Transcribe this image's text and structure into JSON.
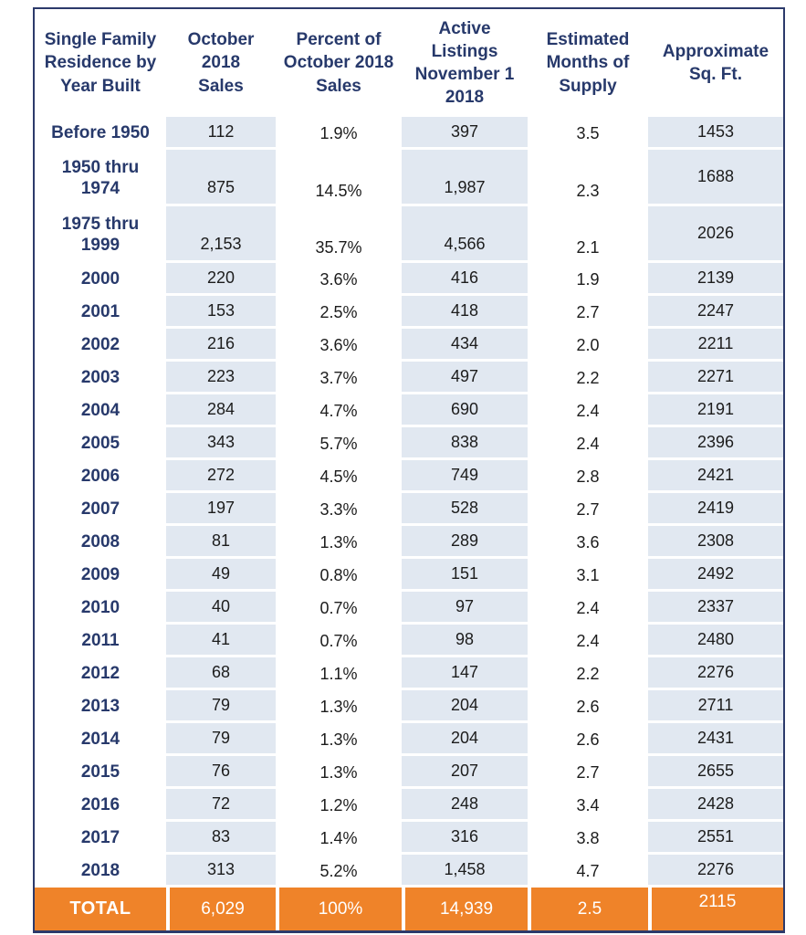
{
  "colors": {
    "header_text_navy": "#27396B",
    "border_navy": "#2C3A6B",
    "shaded_cell_blue": "#E1E8F1",
    "total_row_orange": "#EF8329",
    "total_row_text": "#FFFFFF",
    "value_text": "#1C1C1C"
  },
  "chart_data": {
    "type": "table",
    "columns": [
      "Single Family\nResidence by\nYear Built",
      "October\n2018\nSales",
      "Percent of\nOctober 2018\nSales",
      "Active\nListings\nNovember 1\n2018",
      "Estimated\nMonths of\nSupply",
      "Approximate\nSq. Ft."
    ],
    "rows": [
      {
        "year_built": "Before 1950",
        "sales": "112",
        "percent": "1.9%",
        "listings": "397",
        "supply": "3.5",
        "sqft": "1453",
        "tall": false
      },
      {
        "year_built": "1950 thru\n1974",
        "sales": "875",
        "percent": "14.5%",
        "listings": "1,987",
        "supply": "2.3",
        "sqft": "1688",
        "tall": true
      },
      {
        "year_built": "1975 thru\n1999",
        "sales": "2,153",
        "percent": "35.7%",
        "listings": "4,566",
        "supply": "2.1",
        "sqft": "2026",
        "tall": true
      },
      {
        "year_built": "2000",
        "sales": "220",
        "percent": "3.6%",
        "listings": "416",
        "supply": "1.9",
        "sqft": "2139",
        "tall": false
      },
      {
        "year_built": "2001",
        "sales": "153",
        "percent": "2.5%",
        "listings": "418",
        "supply": "2.7",
        "sqft": "2247",
        "tall": false
      },
      {
        "year_built": "2002",
        "sales": "216",
        "percent": "3.6%",
        "listings": "434",
        "supply": "2.0",
        "sqft": "2211",
        "tall": false
      },
      {
        "year_built": "2003",
        "sales": "223",
        "percent": "3.7%",
        "listings": "497",
        "supply": "2.2",
        "sqft": "2271",
        "tall": false
      },
      {
        "year_built": "2004",
        "sales": "284",
        "percent": "4.7%",
        "listings": "690",
        "supply": "2.4",
        "sqft": "2191",
        "tall": false
      },
      {
        "year_built": "2005",
        "sales": "343",
        "percent": "5.7%",
        "listings": "838",
        "supply": "2.4",
        "sqft": "2396",
        "tall": false
      },
      {
        "year_built": "2006",
        "sales": "272",
        "percent": "4.5%",
        "listings": "749",
        "supply": "2.8",
        "sqft": "2421",
        "tall": false
      },
      {
        "year_built": "2007",
        "sales": "197",
        "percent": "3.3%",
        "listings": "528",
        "supply": "2.7",
        "sqft": "2419",
        "tall": false
      },
      {
        "year_built": "2008",
        "sales": "81",
        "percent": "1.3%",
        "listings": "289",
        "supply": "3.6",
        "sqft": "2308",
        "tall": false
      },
      {
        "year_built": "2009",
        "sales": "49",
        "percent": "0.8%",
        "listings": "151",
        "supply": "3.1",
        "sqft": "2492",
        "tall": false
      },
      {
        "year_built": "2010",
        "sales": "40",
        "percent": "0.7%",
        "listings": "97",
        "supply": "2.4",
        "sqft": "2337",
        "tall": false
      },
      {
        "year_built": "2011",
        "sales": "41",
        "percent": "0.7%",
        "listings": "98",
        "supply": "2.4",
        "sqft": "2480",
        "tall": false
      },
      {
        "year_built": "2012",
        "sales": "68",
        "percent": "1.1%",
        "listings": "147",
        "supply": "2.2",
        "sqft": "2276",
        "tall": false
      },
      {
        "year_built": "2013",
        "sales": "79",
        "percent": "1.3%",
        "listings": "204",
        "supply": "2.6",
        "sqft": "2711",
        "tall": false
      },
      {
        "year_built": "2014",
        "sales": "79",
        "percent": "1.3%",
        "listings": "204",
        "supply": "2.6",
        "sqft": "2431",
        "tall": false
      },
      {
        "year_built": "2015",
        "sales": "76",
        "percent": "1.3%",
        "listings": "207",
        "supply": "2.7",
        "sqft": "2655",
        "tall": false
      },
      {
        "year_built": "2016",
        "sales": "72",
        "percent": "1.2%",
        "listings": "248",
        "supply": "3.4",
        "sqft": "2428",
        "tall": false
      },
      {
        "year_built": "2017",
        "sales": "83",
        "percent": "1.4%",
        "listings": "316",
        "supply": "3.8",
        "sqft": "2551",
        "tall": false
      },
      {
        "year_built": "2018",
        "sales": "313",
        "percent": "5.2%",
        "listings": "1,458",
        "supply": "4.7",
        "sqft": "2276",
        "tall": false
      }
    ],
    "total_row": {
      "label": "TOTAL",
      "sales": "6,029",
      "percent": "100%",
      "listings": "14,939",
      "supply": "2.5",
      "sqft": "2115"
    }
  }
}
